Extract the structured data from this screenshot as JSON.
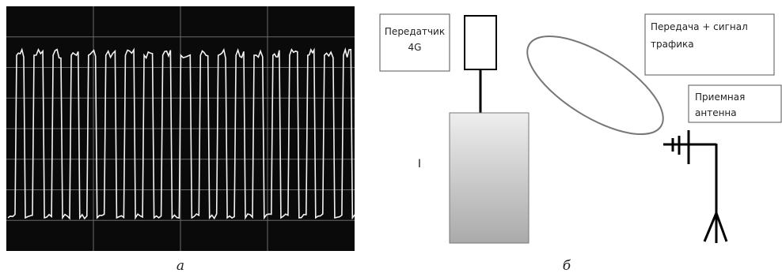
{
  "panel_a": {
    "caption": "а"
  },
  "panel_b": {
    "caption": "б",
    "transmitter": {
      "lines": [
        "Передатчик",
        "4G"
      ]
    },
    "transmission": {
      "lines": [
        "Передача + сигнал",
        "трафика"
      ]
    },
    "receiver": {
      "lines": [
        "Приемная",
        "антенна"
      ]
    },
    "marker": "I"
  }
}
